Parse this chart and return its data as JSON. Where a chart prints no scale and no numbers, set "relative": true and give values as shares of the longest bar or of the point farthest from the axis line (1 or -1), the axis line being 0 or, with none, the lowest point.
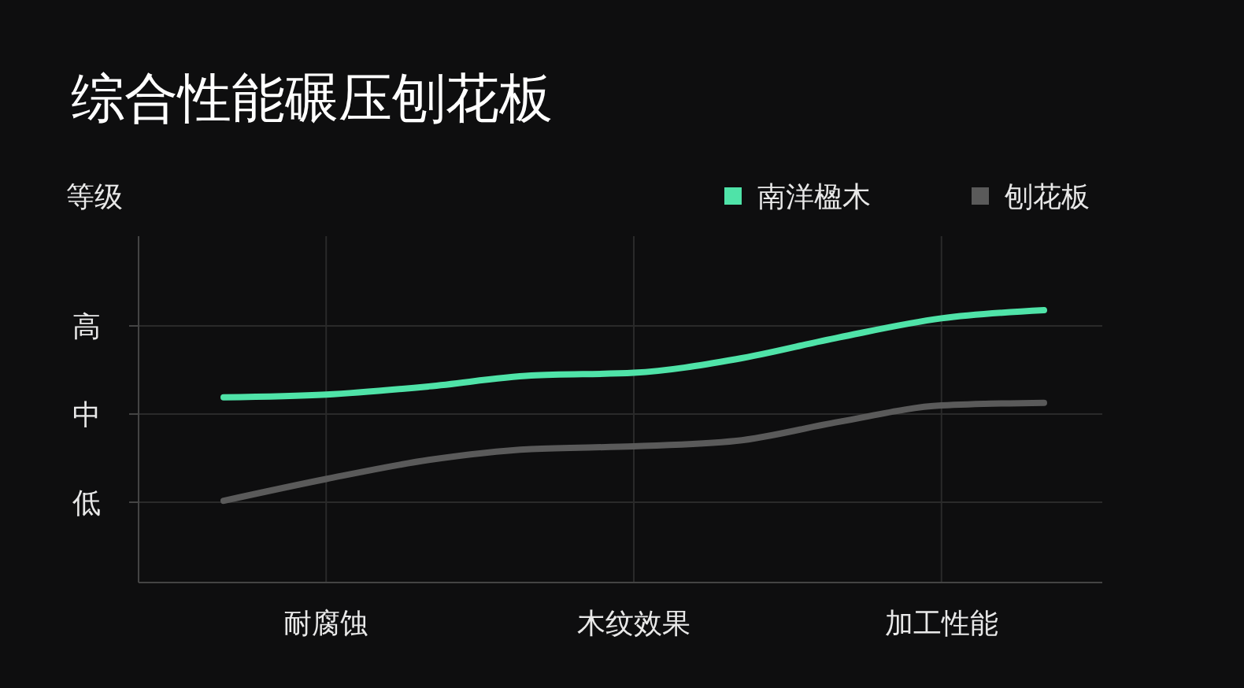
{
  "chart_data": {
    "type": "line",
    "title": "综合性能碾压刨花板",
    "ylabel": "等级",
    "relative": true,
    "categories": [
      null,
      "耐腐蚀",
      null,
      null,
      "木纹效果",
      null,
      null,
      "加工性能",
      null
    ],
    "annotations": [
      "低",
      "中",
      "高"
    ],
    "grid": true,
    "legend": "top right",
    "line_style": "solid",
    "series": [
      {
        "name": "南洋楹木",
        "color": "#4fe3a8",
        "values": [
          0.68,
          0.69,
          0.72,
          0.76,
          0.77,
          0.82,
          0.9,
          0.97,
          1
        ]
      },
      {
        "name": "刨花板",
        "color": "#5a5a5a",
        "values": [
          0.3,
          0.38,
          0.45,
          0.49,
          0.5,
          0.52,
          0.59,
          0.65,
          0.66
        ]
      }
    ]
  }
}
